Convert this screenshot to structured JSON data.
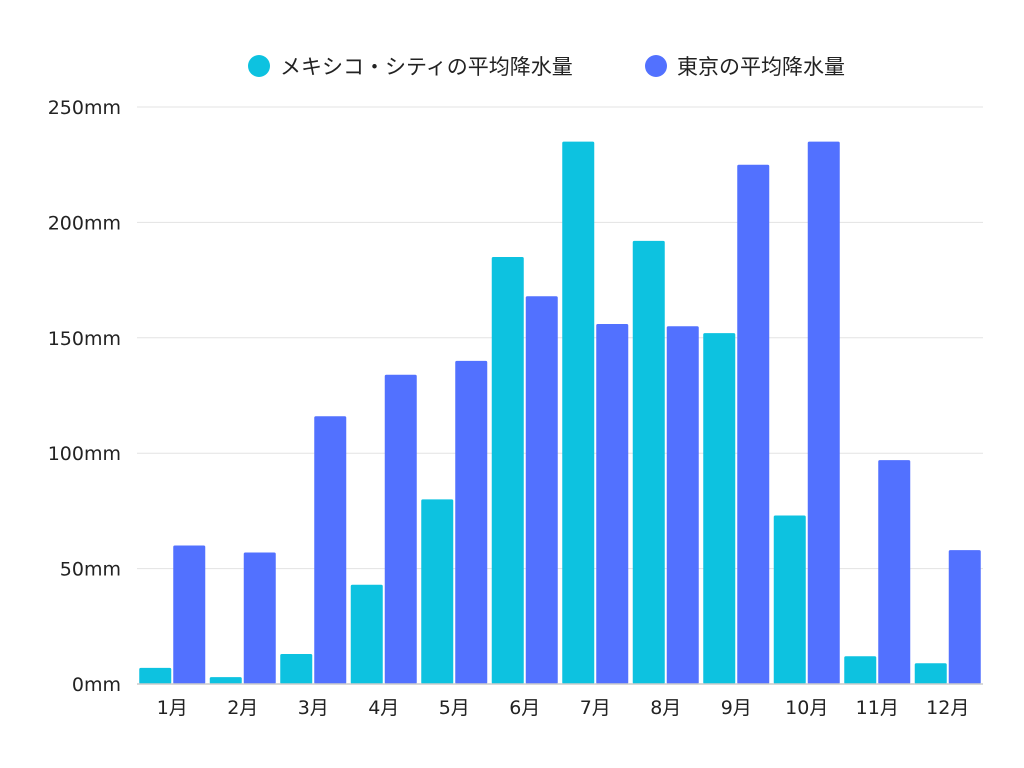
{
  "chart_data": {
    "type": "bar",
    "title": "",
    "xlabel": "",
    "ylabel": "",
    "categories": [
      "1月",
      "2月",
      "3月",
      "4月",
      "5月",
      "6月",
      "7月",
      "8月",
      "9月",
      "10月",
      "11月",
      "12月"
    ],
    "series": [
      {
        "name": "メキシコ・シティの平均降水量",
        "color": "#0dc2e0",
        "values": [
          7,
          3,
          13,
          43,
          80,
          185,
          235,
          192,
          152,
          73,
          12,
          9
        ]
      },
      {
        "name": "東京の平均降水量",
        "color": "#5271ff",
        "values": [
          60,
          57,
          116,
          134,
          140,
          168,
          156,
          155,
          225,
          235,
          97,
          58
        ]
      }
    ],
    "ylim": [
      0,
      250
    ],
    "yticks": [
      0,
      50,
      100,
      150,
      200,
      250
    ],
    "ytick_labels": [
      "0mm",
      "50mm",
      "100mm",
      "150mm",
      "200mm",
      "250mm"
    ],
    "grid": true,
    "legend_position": "top-center"
  }
}
